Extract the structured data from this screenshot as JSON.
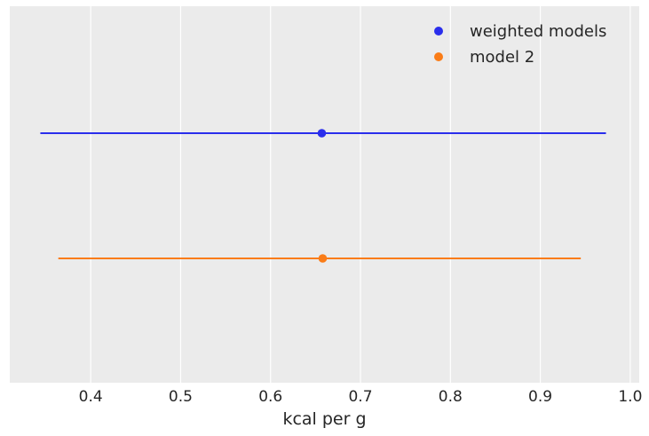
{
  "chart_data": {
    "type": "forest",
    "title": "",
    "xlabel": "kcal per g",
    "ylabel": "",
    "xlim": [
      0.31,
      1.01
    ],
    "xticks": [
      0.4,
      0.5,
      0.6,
      0.7,
      0.8,
      0.9,
      1.0
    ],
    "xtick_labels": [
      "0.4",
      "0.5",
      "0.6",
      "0.7",
      "0.8",
      "0.9",
      "1.0"
    ],
    "grid": "vertical",
    "background_color": "#ebebeb",
    "legend_position": "top-right",
    "series": [
      {
        "name": "weighted models",
        "color": "#2a2eec",
        "mean": 0.657,
        "lower": 0.344,
        "upper": 0.973
      },
      {
        "name": "model 2",
        "color": "#fa7c17",
        "mean": 0.658,
        "lower": 0.364,
        "upper": 0.945
      }
    ]
  }
}
